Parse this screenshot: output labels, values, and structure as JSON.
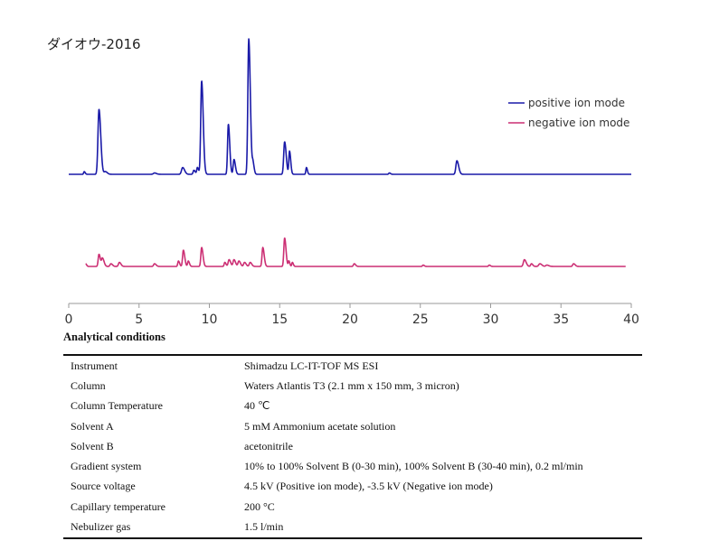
{
  "title": "ダイオウ-2016",
  "chart_data": {
    "type": "line",
    "xlim": [
      0,
      40
    ],
    "xticks": [
      "0",
      "5",
      "10",
      "15",
      "20",
      "25",
      "30",
      "35",
      "40"
    ],
    "colors": {
      "positive": "#1a1aa8",
      "negative": "#cc2f74"
    },
    "series": [
      {
        "name": "positive ion mode",
        "baseline": 0.0,
        "peaks": [
          [
            1.1,
            0.02,
            0.05
          ],
          [
            2.15,
            0.48,
            0.09
          ],
          [
            2.6,
            0.02,
            0.1
          ],
          [
            6.1,
            0.01,
            0.1
          ],
          [
            8.1,
            0.05,
            0.1
          ],
          [
            8.9,
            0.03,
            0.07
          ],
          [
            9.15,
            0.05,
            0.06
          ],
          [
            9.45,
            0.69,
            0.08
          ],
          [
            11.35,
            0.37,
            0.07
          ],
          [
            11.75,
            0.11,
            0.07
          ],
          [
            12.8,
            1.0,
            0.08
          ],
          [
            13.1,
            0.08,
            0.06
          ],
          [
            15.35,
            0.24,
            0.08
          ],
          [
            15.7,
            0.17,
            0.06
          ],
          [
            16.9,
            0.05,
            0.05
          ],
          [
            22.8,
            0.01,
            0.06
          ],
          [
            27.6,
            0.1,
            0.09
          ]
        ]
      },
      {
        "name": "negative ion mode",
        "baseline": 0.0,
        "peaks": [
          [
            1.2,
            0.02,
            0.05
          ],
          [
            2.15,
            0.09,
            0.07
          ],
          [
            2.4,
            0.06,
            0.08
          ],
          [
            3.0,
            0.02,
            0.08
          ],
          [
            3.6,
            0.03,
            0.08
          ],
          [
            6.1,
            0.02,
            0.08
          ],
          [
            7.8,
            0.04,
            0.06
          ],
          [
            8.15,
            0.12,
            0.07
          ],
          [
            8.5,
            0.04,
            0.06
          ],
          [
            9.45,
            0.14,
            0.07
          ],
          [
            11.1,
            0.03,
            0.06
          ],
          [
            11.4,
            0.05,
            0.08
          ],
          [
            11.75,
            0.05,
            0.08
          ],
          [
            12.1,
            0.04,
            0.08
          ],
          [
            12.5,
            0.03,
            0.08
          ],
          [
            12.9,
            0.03,
            0.08
          ],
          [
            13.8,
            0.14,
            0.07
          ],
          [
            15.35,
            0.21,
            0.07
          ],
          [
            15.65,
            0.04,
            0.05
          ],
          [
            15.9,
            0.03,
            0.05
          ],
          [
            20.3,
            0.02,
            0.07
          ],
          [
            25.2,
            0.01,
            0.06
          ],
          [
            29.9,
            0.01,
            0.06
          ],
          [
            32.4,
            0.05,
            0.09
          ],
          [
            32.9,
            0.02,
            0.07
          ],
          [
            33.5,
            0.02,
            0.1
          ],
          [
            34.0,
            0.01,
            0.1
          ],
          [
            35.9,
            0.02,
            0.08
          ]
        ]
      }
    ],
    "legend_position": "top-right"
  },
  "conditions": {
    "heading": "Analytical conditions",
    "rows": [
      {
        "key": "Instrument",
        "value": "Shimadzu LC-IT-TOF MS ESI"
      },
      {
        "key": "Column",
        "value": "Waters Atlantis T3 (2.1 mm x 150 mm, 3 micron)"
      },
      {
        "key": "Column Temperature",
        "value": "40 ℃"
      },
      {
        "key": "Solvent A",
        "value": "5 mM Ammonium acetate solution"
      },
      {
        "key": "Solvent B",
        "value": "acetonitrile"
      },
      {
        "key": "Gradient system",
        "value": "10% to 100% Solvent B (0-30 min), 100% Solvent B (30-40 min), 0.2 ml/min"
      },
      {
        "key": "Source voltage",
        "value": "4.5 kV (Positive ion mode), -3.5 kV (Negative ion mode)"
      },
      {
        "key": "Capillary temperature",
        "value": "200 °C"
      },
      {
        "key": "Nebulizer gas",
        "value": "1.5 l/min"
      }
    ]
  }
}
